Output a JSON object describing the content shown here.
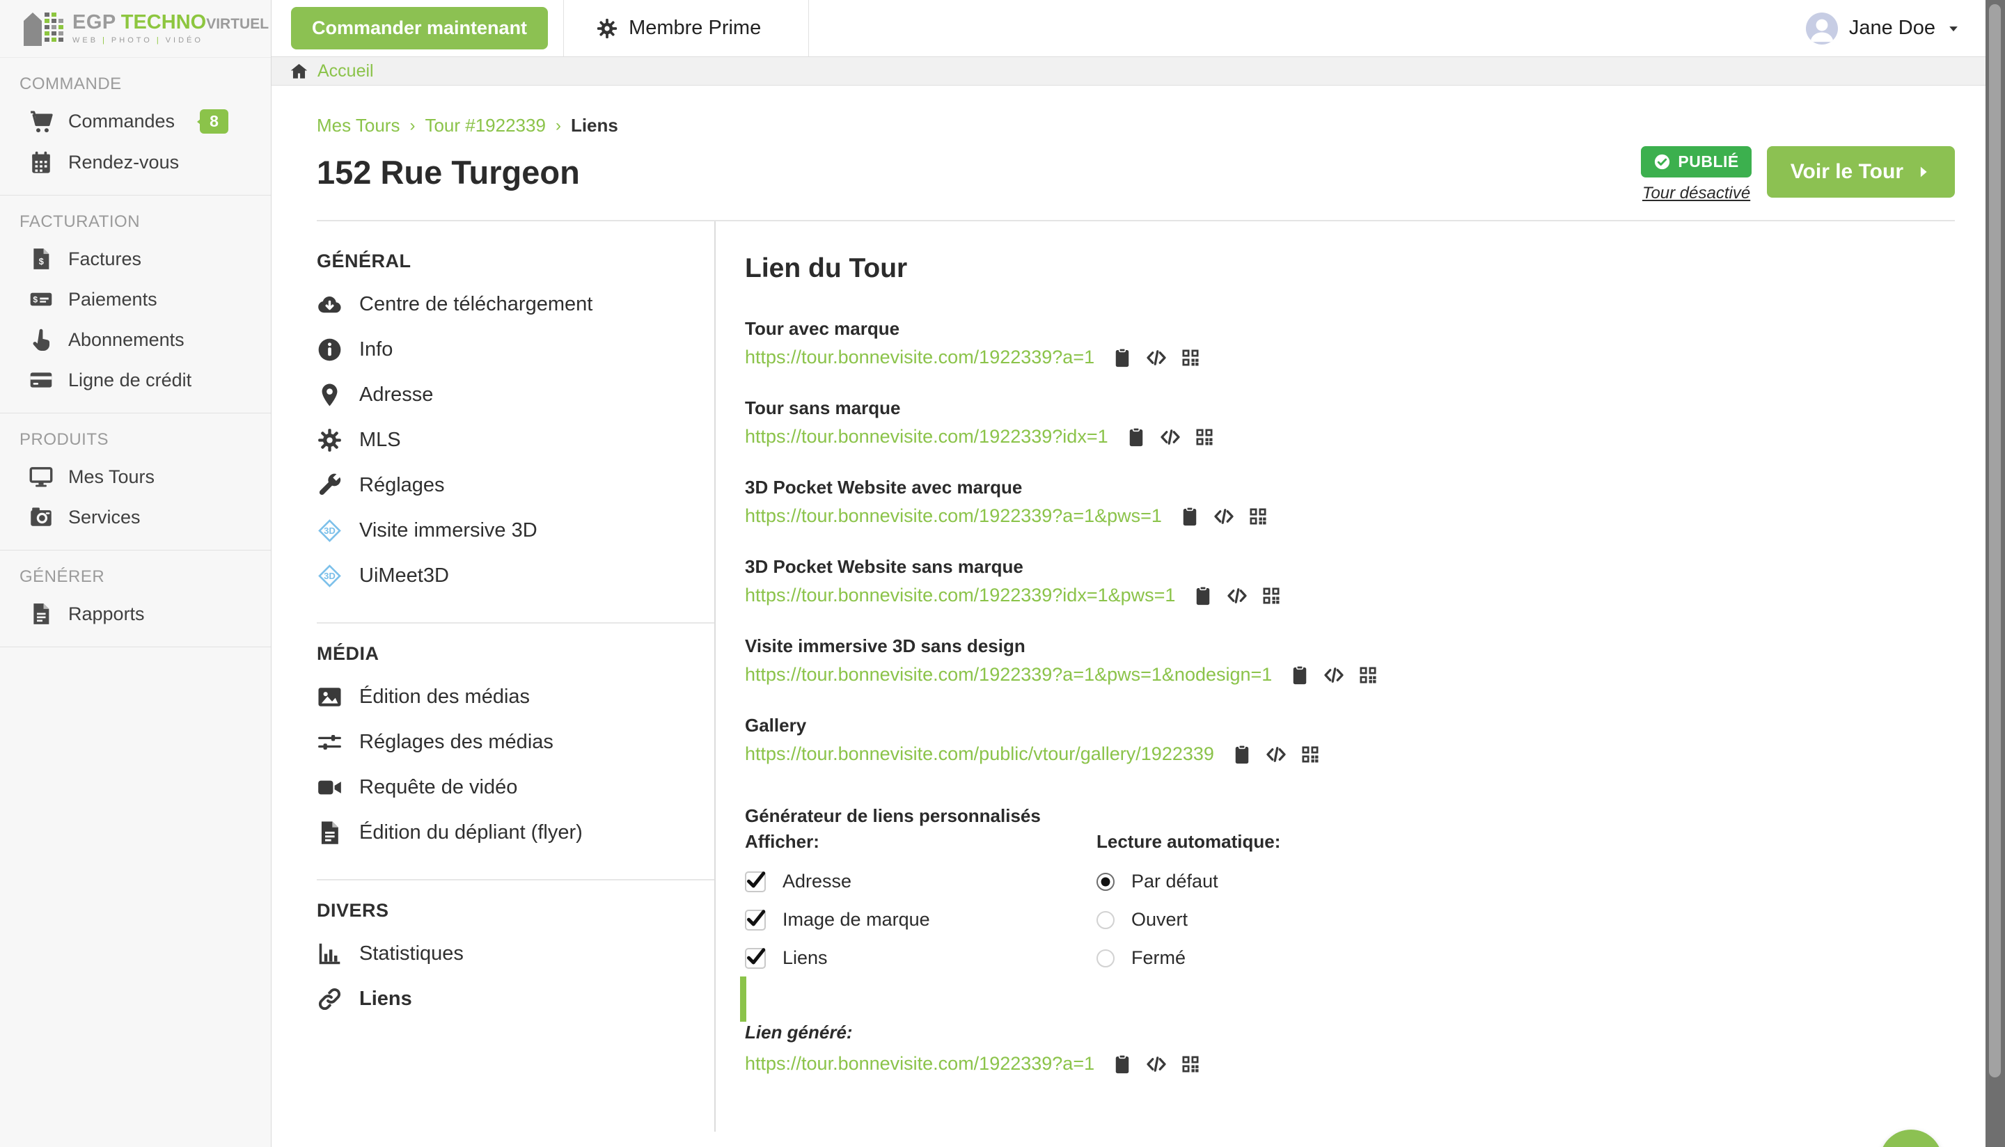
{
  "colors": {
    "green": "#8bc34a",
    "green_button": "#8cc152",
    "green_dark": "#3cb04e",
    "accent_blue": "#7cc0ea",
    "text_dark": "#2b2b2b",
    "sidebar_bg": "#f7f7f7"
  },
  "brand": {
    "egp": "EGP",
    "techno": "TECHNO",
    "virtuel": "VIRTUEL",
    "tagline_parts": [
      "WEB",
      "PHOTO",
      "VIDÉO"
    ],
    "tagline_separator": "|"
  },
  "topbar": {
    "order_button": "Commander maintenant",
    "membership": {
      "icon": "gear",
      "label": "Membre Prime"
    },
    "user": {
      "icon": "person",
      "name": "Jane Doe",
      "caret_icon": "caret-down"
    }
  },
  "breadcrumb_bar": {
    "icon": "home",
    "label": "Accueil"
  },
  "sidebar": {
    "sections": [
      {
        "header": "COMMANDE",
        "items": [
          {
            "icon": "cart",
            "label": "Commandes",
            "badge": "8"
          },
          {
            "icon": "calendar",
            "label": "Rendez-vous"
          }
        ]
      },
      {
        "header": "FACTURATION",
        "items": [
          {
            "icon": "invoice",
            "label": "Factures"
          },
          {
            "icon": "payment",
            "label": "Paiements"
          },
          {
            "icon": "hand-pointer",
            "label": "Abonnements"
          },
          {
            "icon": "credit-card",
            "label": "Ligne de crédit"
          }
        ]
      },
      {
        "header": "PRODUITS",
        "items": [
          {
            "icon": "monitor",
            "label": "Mes Tours"
          },
          {
            "icon": "camera",
            "label": "Services"
          }
        ]
      },
      {
        "header": "GÉNÉRER",
        "items": [
          {
            "icon": "report",
            "label": "Rapports"
          }
        ]
      }
    ]
  },
  "page": {
    "crumbs": [
      {
        "label": "Mes Tours",
        "link": true
      },
      {
        "label": "Tour #1922339",
        "link": true
      },
      {
        "label": "Liens",
        "link": false
      }
    ],
    "crumb_separator": "›",
    "title": "152 Rue Turgeon",
    "status_badge": {
      "icon": "check-circle",
      "label": "PUBLIÉ"
    },
    "status_link": "Tour désactivé",
    "view_button": {
      "label": "Voir le Tour",
      "icon": "caret-right"
    }
  },
  "subnav": {
    "sections": [
      {
        "header": "GÉNÉRAL",
        "items": [
          {
            "icon": "cloud-download",
            "label": "Centre de téléchargement"
          },
          {
            "icon": "info",
            "label": "Info"
          },
          {
            "icon": "map-marker",
            "label": "Adresse"
          },
          {
            "icon": "gear",
            "label": "MLS"
          },
          {
            "icon": "wrench",
            "label": "Réglages"
          },
          {
            "icon": "cube-3d",
            "label": "Visite immersive 3D",
            "accent": true
          },
          {
            "icon": "cube-3d",
            "label": "UiMeet3D",
            "accent": true
          }
        ]
      },
      {
        "header": "MÉDIA",
        "items": [
          {
            "icon": "image",
            "label": "Édition des médias"
          },
          {
            "icon": "sliders",
            "label": "Réglages des médias"
          },
          {
            "icon": "video",
            "label": "Requête de vidéo"
          },
          {
            "icon": "flyer",
            "label": "Édition du dépliant (flyer)"
          }
        ]
      },
      {
        "header": "DIVERS",
        "items": [
          {
            "icon": "stats",
            "label": "Statistiques"
          },
          {
            "icon": "link",
            "label": "Liens",
            "active": true
          }
        ]
      }
    ]
  },
  "links_panel": {
    "title": "Lien du Tour",
    "action_icons": [
      "clipboard",
      "code",
      "qr"
    ],
    "groups": [
      {
        "label": "Tour avec marque",
        "url": "https://tour.bonnevisite.com/1922339?a=1"
      },
      {
        "label": "Tour sans marque",
        "url": "https://tour.bonnevisite.com/1922339?idx=1"
      },
      {
        "label": "3D Pocket Website avec marque",
        "url": "https://tour.bonnevisite.com/1922339?a=1&pws=1"
      },
      {
        "label": "3D Pocket Website sans marque",
        "url": "https://tour.bonnevisite.com/1922339?idx=1&pws=1"
      },
      {
        "label": "Visite immersive 3D sans design",
        "url": "https://tour.bonnevisite.com/1922339?a=1&pws=1&nodesign=1"
      },
      {
        "label": "Gallery",
        "url": "https://tour.bonnevisite.com/public/vtour/gallery/1922339"
      }
    ],
    "generator": {
      "title": "Générateur de liens personnalisés",
      "display_label": "Afficher:",
      "display_options": [
        {
          "label": "Adresse",
          "checked": true
        },
        {
          "label": "Image de marque",
          "checked": true
        },
        {
          "label": "Liens",
          "checked": true
        }
      ],
      "autoplay_label": "Lecture automatique:",
      "autoplay_options": [
        {
          "label": "Par défaut",
          "selected": true
        },
        {
          "label": "Ouvert",
          "selected": false
        },
        {
          "label": "Fermé",
          "selected": false
        }
      ],
      "result_label": "Lien généré:",
      "result_url": "https://tour.bonnevisite.com/1922339?a=1"
    }
  },
  "help_button": {
    "label": "?"
  }
}
